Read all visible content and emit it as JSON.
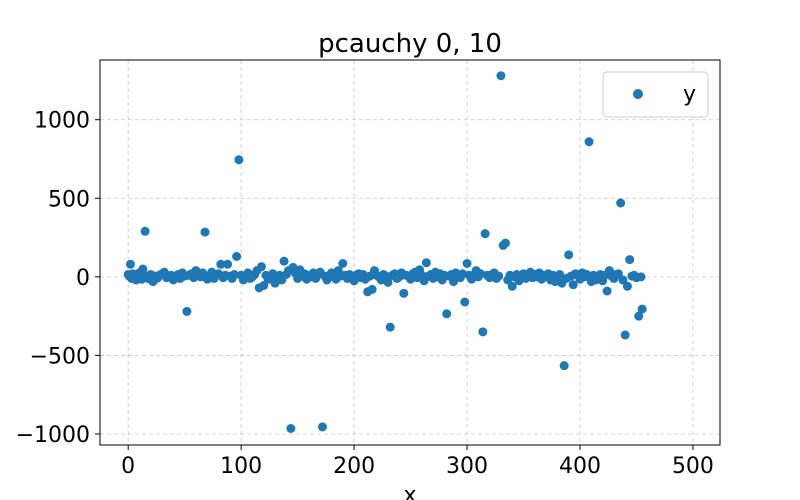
{
  "chart_data": {
    "type": "scatter",
    "title": "pcauchy 0, 10",
    "xlabel": "x",
    "ylabel": "",
    "xlim": [
      -24.95,
      523.95
    ],
    "ylim": [
      -1070,
      1380
    ],
    "xticks": [
      0,
      100,
      200,
      300,
      400,
      500
    ],
    "yticks": [
      -1000,
      -500,
      0,
      500,
      1000
    ],
    "xtick_labels": [
      "0",
      "100",
      "200",
      "300",
      "400",
      "500"
    ],
    "ytick_labels": [
      "−1000",
      "−500",
      "0",
      "500",
      "1000"
    ],
    "grid": true,
    "legend_position": "top-right",
    "color": "#1f77b4",
    "series": [
      {
        "name": "y",
        "points": [
          [
            0,
            15
          ],
          [
            1,
            5
          ],
          [
            2,
            80
          ],
          [
            3,
            -10
          ],
          [
            4,
            20
          ],
          [
            5,
            -5
          ],
          [
            6,
            10
          ],
          [
            7,
            -20
          ],
          [
            8,
            0
          ],
          [
            10,
            25
          ],
          [
            12,
            -15
          ],
          [
            13,
            50
          ],
          [
            15,
            290
          ],
          [
            16,
            8
          ],
          [
            18,
            -12
          ],
          [
            20,
            15
          ],
          [
            22,
            -30
          ],
          [
            24,
            5
          ],
          [
            26,
            -8
          ],
          [
            28,
            12
          ],
          [
            30,
            20
          ],
          [
            32,
            30
          ],
          [
            34,
            -5
          ],
          [
            36,
            0
          ],
          [
            38,
            10
          ],
          [
            40,
            -20
          ],
          [
            42,
            5
          ],
          [
            44,
            15
          ],
          [
            46,
            -10
          ],
          [
            48,
            25
          ],
          [
            50,
            5
          ],
          [
            52,
            -220
          ],
          [
            54,
            10
          ],
          [
            56,
            20
          ],
          [
            58,
            -5
          ],
          [
            60,
            40
          ],
          [
            62,
            10
          ],
          [
            64,
            0
          ],
          [
            66,
            25
          ],
          [
            68,
            285
          ],
          [
            70,
            -15
          ],
          [
            72,
            5
          ],
          [
            74,
            30
          ],
          [
            76,
            -10
          ],
          [
            78,
            15
          ],
          [
            80,
            20
          ],
          [
            82,
            80
          ],
          [
            84,
            -5
          ],
          [
            86,
            10
          ],
          [
            88,
            80
          ],
          [
            90,
            5
          ],
          [
            92,
            -10
          ],
          [
            94,
            15
          ],
          [
            96,
            130
          ],
          [
            98,
            745
          ],
          [
            100,
            10
          ],
          [
            102,
            -20
          ],
          [
            104,
            5
          ],
          [
            106,
            25
          ],
          [
            108,
            -10
          ],
          [
            110,
            0
          ],
          [
            112,
            15
          ],
          [
            114,
            40
          ],
          [
            116,
            -70
          ],
          [
            118,
            65
          ],
          [
            120,
            -55
          ],
          [
            122,
            10
          ],
          [
            124,
            -15
          ],
          [
            126,
            5
          ],
          [
            128,
            20
          ],
          [
            130,
            -40
          ],
          [
            132,
            5
          ],
          [
            134,
            10
          ],
          [
            136,
            -20
          ],
          [
            138,
            100
          ],
          [
            140,
            15
          ],
          [
            142,
            40
          ],
          [
            144,
            -965
          ],
          [
            146,
            60
          ],
          [
            148,
            25
          ],
          [
            150,
            -10
          ],
          [
            152,
            45
          ],
          [
            154,
            5
          ],
          [
            156,
            20
          ],
          [
            158,
            -15
          ],
          [
            160,
            10
          ],
          [
            162,
            0
          ],
          [
            164,
            25
          ],
          [
            166,
            -10
          ],
          [
            168,
            15
          ],
          [
            170,
            30
          ],
          [
            172,
            -955
          ],
          [
            174,
            5
          ],
          [
            176,
            -20
          ],
          [
            178,
            10
          ],
          [
            180,
            25
          ],
          [
            182,
            0
          ],
          [
            184,
            -15
          ],
          [
            186,
            40
          ],
          [
            188,
            5
          ],
          [
            190,
            85
          ],
          [
            192,
            10
          ],
          [
            194,
            -10
          ],
          [
            196,
            15
          ],
          [
            198,
            5
          ],
          [
            200,
            -25
          ],
          [
            202,
            10
          ],
          [
            204,
            20
          ],
          [
            206,
            -5
          ],
          [
            208,
            15
          ],
          [
            210,
            -15
          ],
          [
            212,
            -95
          ],
          [
            214,
            5
          ],
          [
            216,
            -80
          ],
          [
            218,
            40
          ],
          [
            220,
            10
          ],
          [
            222,
            0
          ],
          [
            224,
            -20
          ],
          [
            226,
            15
          ],
          [
            228,
            5
          ],
          [
            230,
            -35
          ],
          [
            232,
            -320
          ],
          [
            234,
            10
          ],
          [
            236,
            20
          ],
          [
            238,
            -10
          ],
          [
            240,
            0
          ],
          [
            242,
            25
          ],
          [
            244,
            -105
          ],
          [
            246,
            10
          ],
          [
            248,
            5
          ],
          [
            250,
            -15
          ],
          [
            252,
            20
          ],
          [
            254,
            30
          ],
          [
            256,
            -5
          ],
          [
            258,
            45
          ],
          [
            260,
            10
          ],
          [
            262,
            -25
          ],
          [
            264,
            90
          ],
          [
            266,
            5
          ],
          [
            268,
            15
          ],
          [
            270,
            -10
          ],
          [
            272,
            30
          ],
          [
            274,
            0
          ],
          [
            276,
            20
          ],
          [
            278,
            -20
          ],
          [
            280,
            10
          ],
          [
            282,
            -235
          ],
          [
            284,
            5
          ],
          [
            286,
            15
          ],
          [
            288,
            -30
          ],
          [
            290,
            25
          ],
          [
            292,
            10
          ],
          [
            294,
            -5
          ],
          [
            296,
            20
          ],
          [
            298,
            -160
          ],
          [
            300,
            85
          ],
          [
            302,
            10
          ],
          [
            304,
            -15
          ],
          [
            306,
            5
          ],
          [
            308,
            40
          ],
          [
            310,
            0
          ],
          [
            312,
            20
          ],
          [
            314,
            -350
          ],
          [
            316,
            275
          ],
          [
            318,
            10
          ],
          [
            320,
            -5
          ],
          [
            322,
            15
          ],
          [
            324,
            25
          ],
          [
            326,
            -10
          ],
          [
            328,
            5
          ],
          [
            330,
            1280
          ],
          [
            332,
            200
          ],
          [
            334,
            215
          ],
          [
            336,
            -20
          ],
          [
            338,
            10
          ],
          [
            340,
            -60
          ],
          [
            342,
            0
          ],
          [
            344,
            15
          ],
          [
            346,
            -25
          ],
          [
            348,
            5
          ],
          [
            350,
            20
          ],
          [
            352,
            -10
          ],
          [
            354,
            10
          ],
          [
            356,
            30
          ],
          [
            358,
            -5
          ],
          [
            360,
            15
          ],
          [
            362,
            0
          ],
          [
            364,
            25
          ],
          [
            366,
            -15
          ],
          [
            368,
            10
          ],
          [
            370,
            5
          ],
          [
            372,
            20
          ],
          [
            374,
            -20
          ],
          [
            376,
            10
          ],
          [
            378,
            -30
          ],
          [
            380,
            5
          ],
          [
            382,
            15
          ],
          [
            384,
            -40
          ],
          [
            386,
            -565
          ],
          [
            388,
            -10
          ],
          [
            390,
            140
          ],
          [
            392,
            5
          ],
          [
            394,
            -50
          ],
          [
            396,
            20
          ],
          [
            398,
            10
          ],
          [
            400,
            -15
          ],
          [
            402,
            25
          ],
          [
            404,
            0
          ],
          [
            406,
            15
          ],
          [
            408,
            860
          ],
          [
            410,
            -30
          ],
          [
            412,
            10
          ],
          [
            414,
            -20
          ],
          [
            416,
            5
          ],
          [
            418,
            15
          ],
          [
            420,
            -25
          ],
          [
            422,
            10
          ],
          [
            424,
            -90
          ],
          [
            426,
            40
          ],
          [
            428,
            5
          ],
          [
            430,
            -10
          ],
          [
            432,
            15
          ],
          [
            434,
            20
          ],
          [
            436,
            470
          ],
          [
            438,
            -20
          ],
          [
            440,
            -370
          ],
          [
            442,
            -60
          ],
          [
            444,
            110
          ],
          [
            446,
            5
          ],
          [
            448,
            10
          ],
          [
            450,
            -5
          ],
          [
            452,
            -250
          ],
          [
            454,
            0
          ],
          [
            455,
            -205
          ]
        ]
      }
    ]
  }
}
